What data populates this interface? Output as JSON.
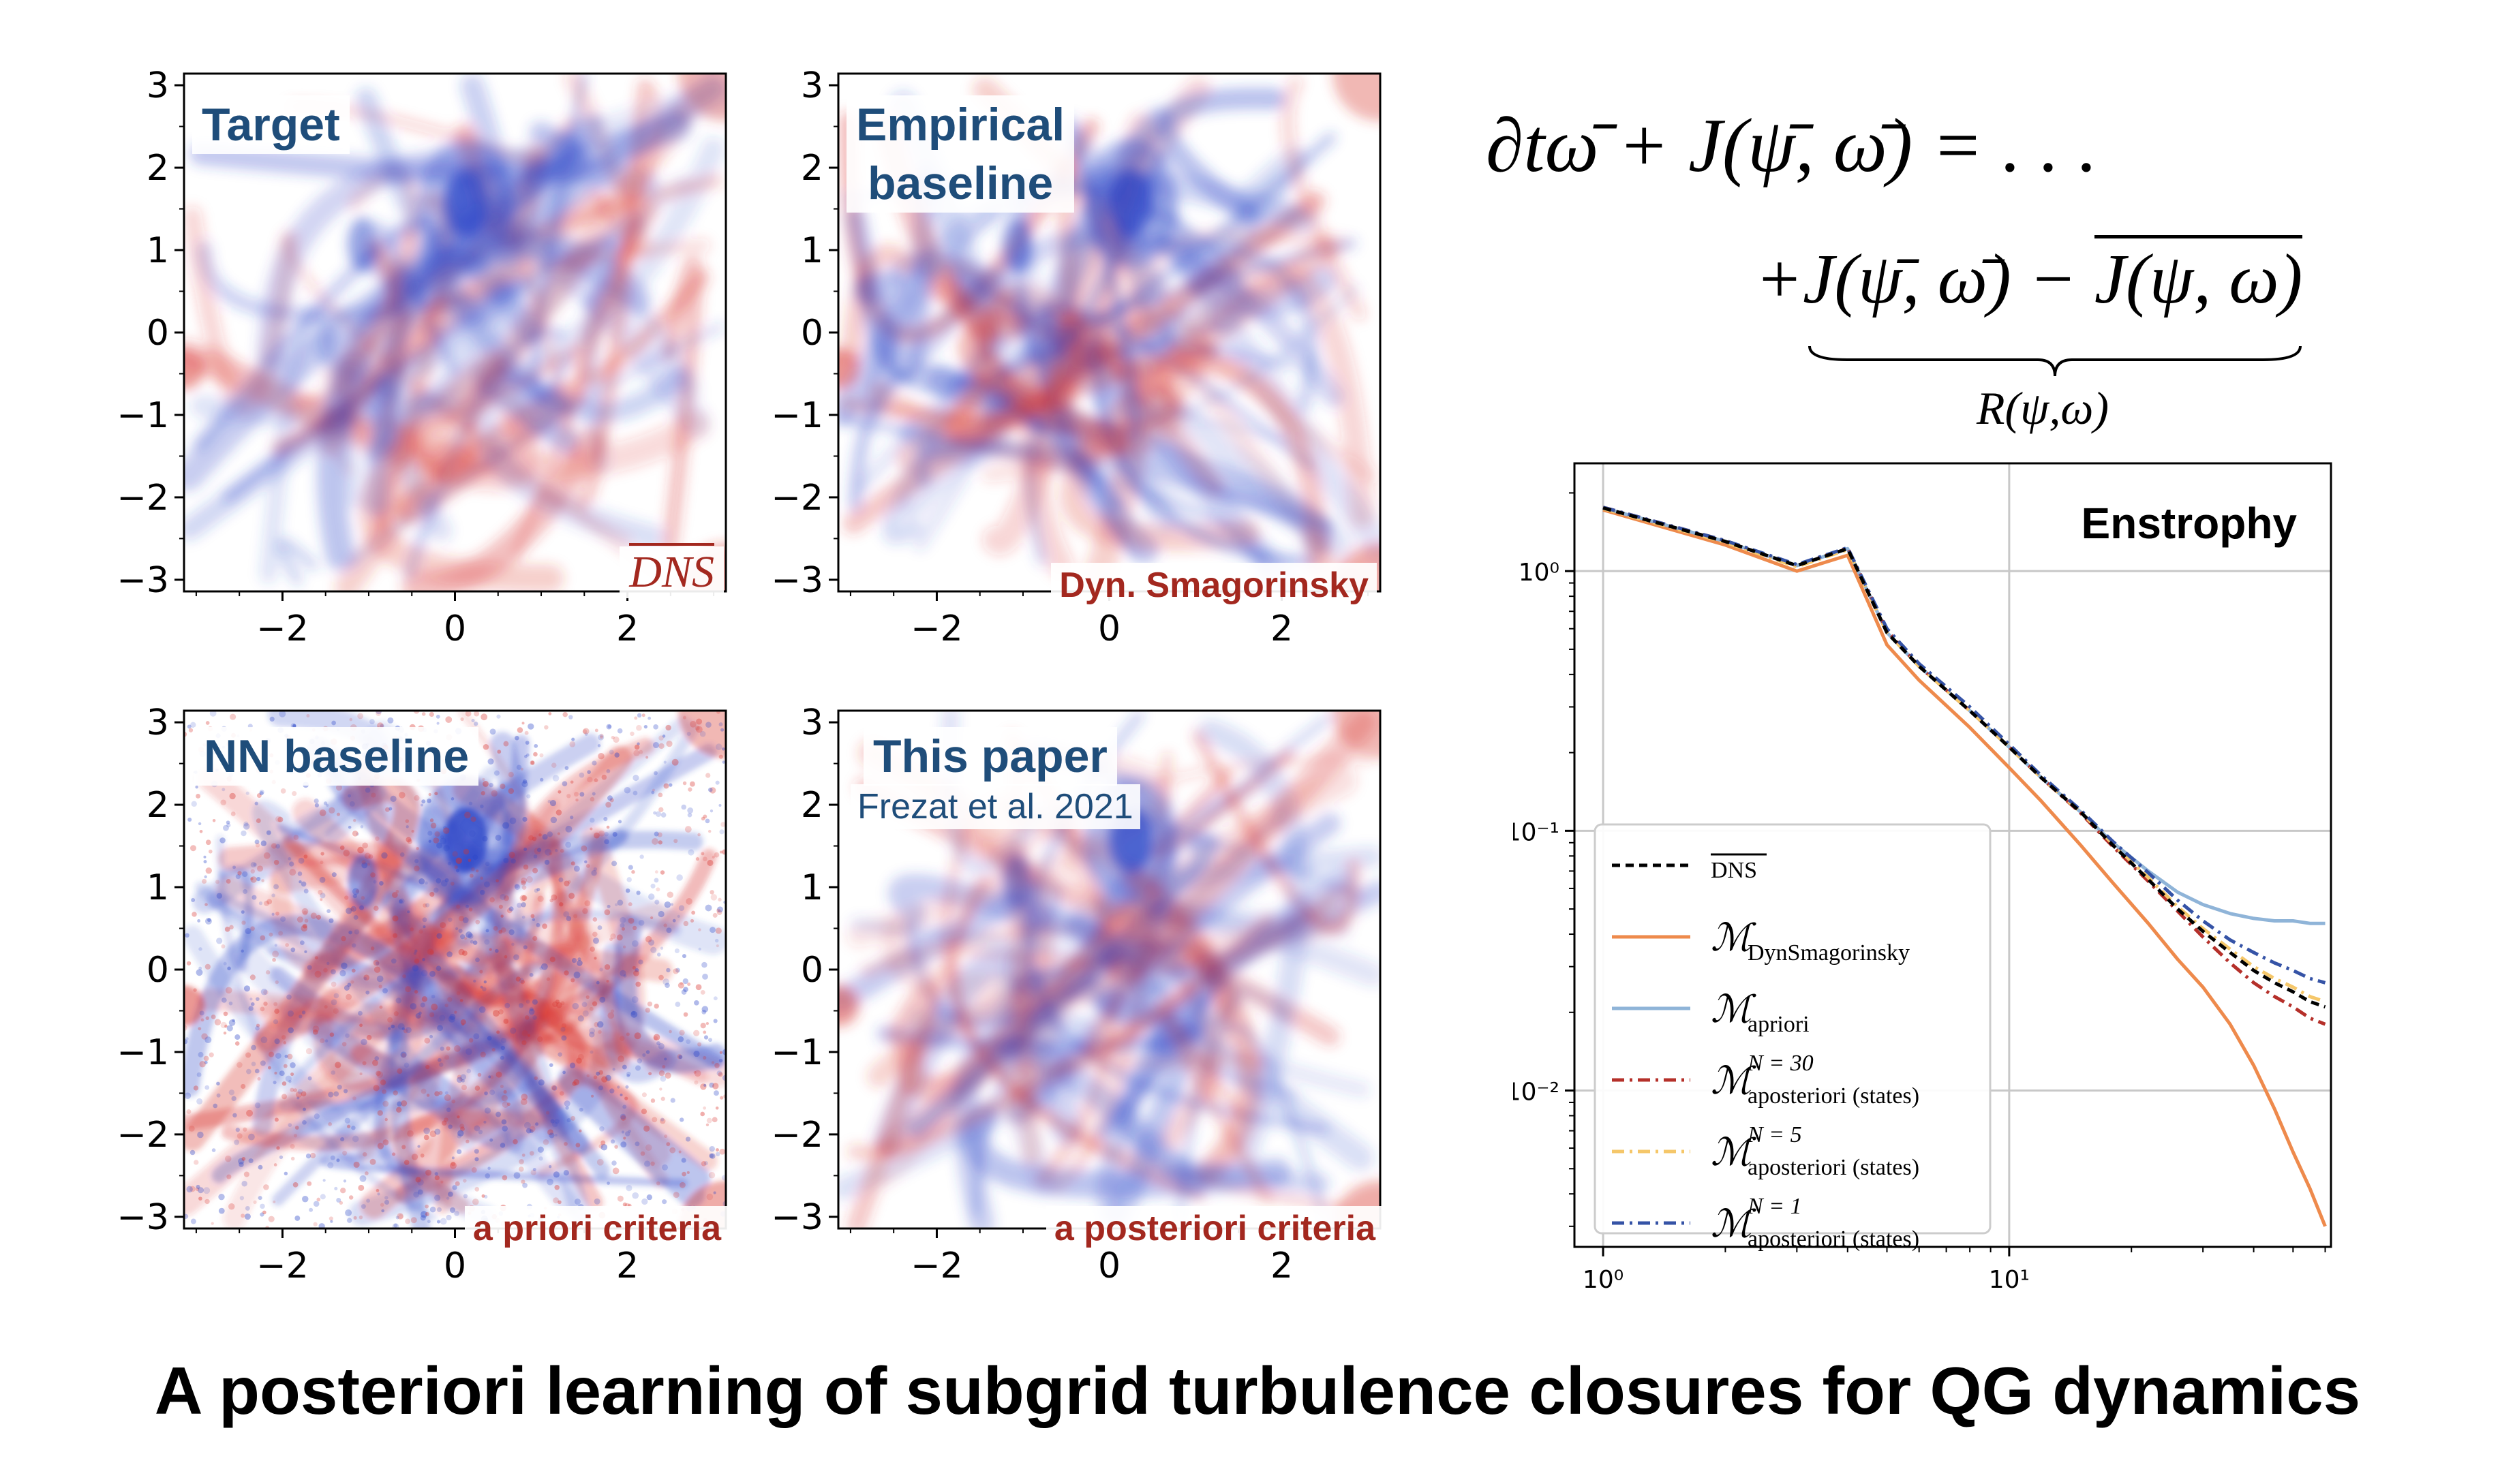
{
  "panels": [
    {
      "label_lines": [
        "Target"
      ],
      "corner_label": "DNS",
      "corner_style": "overline"
    },
    {
      "label_lines": [
        "Empirical",
        "baseline"
      ],
      "corner_label": "Dyn. Smagorinsky",
      "corner_style": "bold"
    },
    {
      "label_lines": [
        "NN baseline"
      ],
      "corner_label": "a priori criteria",
      "corner_style": "bold"
    },
    {
      "label_lines": [
        "This paper"
      ],
      "sub_label": "Frezat et al. 2021",
      "corner_label": "a posteriori criteria",
      "corner_style": "bold"
    }
  ],
  "axis_ticks": {
    "y": [
      "3",
      "2",
      "1",
      "0",
      "−1",
      "−2",
      "−3"
    ],
    "x": [
      "−2",
      "0",
      "2"
    ]
  },
  "colors": {
    "positive": "#d8302a",
    "negative": "#2c46c8",
    "label_blue": "#1f4d7a",
    "label_red": "#a3281f"
  },
  "equation": {
    "line1": "∂tω̄ + J(ψ̄, ω̄) = . . .",
    "line2_part1": "+J(ψ̄, ω̄) − ",
    "line2_part2": "J(ψ, ω)",
    "underbrace_label": "R(ψ,ω)"
  },
  "chart_data": {
    "type": "line",
    "title": "Enstrophy",
    "xscale": "log",
    "yscale": "log",
    "xlim": [
      0.85,
      62
    ],
    "ylim": [
      0.0025,
      2.6
    ],
    "x_ticks": [
      1,
      10
    ],
    "y_ticks": [
      1,
      0.1,
      0.01
    ],
    "x_tick_labels": [
      "10⁰",
      "10¹"
    ],
    "y_tick_labels": [
      "10⁰",
      "10⁻¹",
      "10⁻²"
    ],
    "grid": true,
    "legend_position": "lower-left",
    "x": [
      1,
      2,
      3,
      4,
      5,
      6,
      8,
      10,
      12,
      15,
      18,
      22,
      26,
      30,
      35,
      40,
      45,
      50,
      55,
      60
    ],
    "series": [
      {
        "name": "DNS",
        "color": "#000000",
        "dash": "12,8",
        "width": 5,
        "values": [
          1.75,
          1.3,
          1.05,
          1.22,
          0.58,
          0.43,
          0.29,
          0.21,
          0.16,
          0.118,
          0.088,
          0.065,
          0.05,
          0.041,
          0.034,
          0.029,
          0.026,
          0.024,
          0.022,
          0.021
        ]
      },
      {
        "name": "M DynSmagorinsky",
        "color": "#ee8a4c",
        "dash": "",
        "width": 5,
        "values": [
          1.72,
          1.26,
          1.0,
          1.15,
          0.52,
          0.38,
          0.25,
          0.175,
          0.13,
          0.088,
          0.063,
          0.044,
          0.032,
          0.025,
          0.018,
          0.0125,
          0.0085,
          0.0058,
          0.0042,
          0.003
        ]
      },
      {
        "name": "M apriori",
        "color": "#8fb4d8",
        "dash": "",
        "width": 5,
        "values": [
          1.75,
          1.3,
          1.05,
          1.22,
          0.58,
          0.43,
          0.29,
          0.21,
          0.16,
          0.118,
          0.09,
          0.07,
          0.058,
          0.052,
          0.048,
          0.046,
          0.045,
          0.045,
          0.044,
          0.044
        ]
      },
      {
        "name": "M aposteriori(states) N=30",
        "color": "#b5302a",
        "dash": "18,8,4,8",
        "width": 5,
        "values": [
          1.76,
          1.31,
          1.05,
          1.23,
          0.59,
          0.43,
          0.29,
          0.21,
          0.16,
          0.117,
          0.087,
          0.064,
          0.049,
          0.039,
          0.031,
          0.026,
          0.023,
          0.021,
          0.019,
          0.018
        ]
      },
      {
        "name": "M aposteriori(states) N=5",
        "color": "#f5c76a",
        "dash": "18,8,4,8",
        "width": 5,
        "values": [
          1.74,
          1.29,
          1.04,
          1.21,
          0.58,
          0.43,
          0.29,
          0.21,
          0.16,
          0.118,
          0.089,
          0.066,
          0.051,
          0.042,
          0.035,
          0.03,
          0.027,
          0.025,
          0.023,
          0.022
        ]
      },
      {
        "name": "M aposteriori(states) N=1",
        "color": "#3553a6",
        "dash": "18,8,4,8",
        "width": 5,
        "values": [
          1.76,
          1.31,
          1.06,
          1.23,
          0.6,
          0.44,
          0.3,
          0.215,
          0.163,
          0.12,
          0.091,
          0.069,
          0.054,
          0.045,
          0.038,
          0.034,
          0.031,
          0.029,
          0.027,
          0.026
        ]
      }
    ],
    "legend": [
      {
        "main": "DNS",
        "sub": "",
        "sup": "",
        "overline": true
      },
      {
        "main": "ℳ",
        "sub": "DynSmagorinsky",
        "sup": "",
        "overline": false
      },
      {
        "main": "ℳ",
        "sub": "apriori",
        "sup": "",
        "overline": false
      },
      {
        "main": "ℳ",
        "sub": "aposteriori (states)",
        "sup": "N = 30",
        "overline": false
      },
      {
        "main": "ℳ",
        "sub": "aposteriori (states)",
        "sup": "N = 5",
        "overline": false
      },
      {
        "main": "ℳ",
        "sub": "aposteriori (states)",
        "sup": "N = 1",
        "overline": false
      }
    ]
  },
  "title": "A posteriori learning of subgrid turbulence closures for QG dynamics"
}
